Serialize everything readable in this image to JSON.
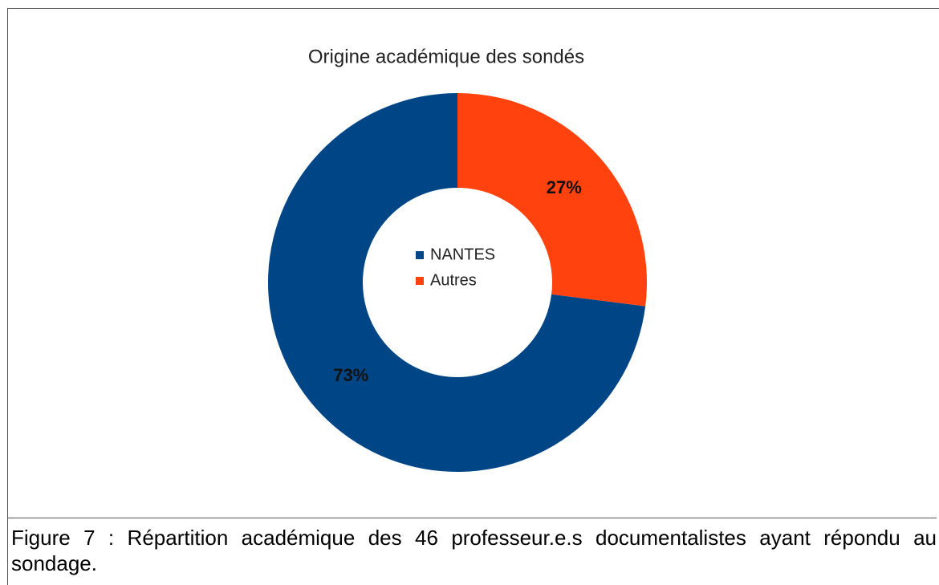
{
  "chart_data": {
    "type": "donut",
    "title": "Origine académique des sondés",
    "categories": [
      "NANTES",
      "Autres"
    ],
    "values": [
      73,
      27
    ],
    "value_labels": [
      "73%",
      "27%"
    ],
    "colors": [
      "#004586",
      "#ff420e"
    ],
    "legend": "center"
  },
  "caption": "Figure 7 : Répartition académique des 46 professeur.e.s documentalistes ayant répondu au sondage."
}
